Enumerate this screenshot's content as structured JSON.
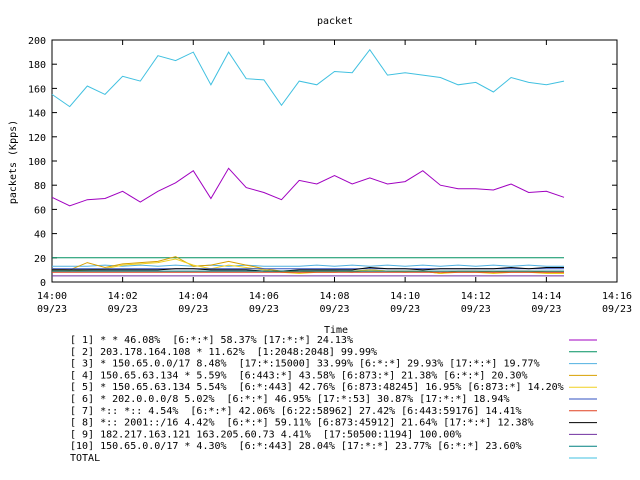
{
  "chart_data": {
    "type": "line",
    "title": "packet",
    "xlabel": "Time",
    "ylabel": "packets (Kpps)",
    "ylim": [
      0,
      200
    ],
    "yticks": [
      0,
      20,
      40,
      60,
      80,
      100,
      120,
      140,
      160,
      180,
      200
    ],
    "xlim": [
      "14:00",
      "14:16"
    ],
    "xticks": [
      {
        "time": "14:00",
        "date": "09/23"
      },
      {
        "time": "14:02",
        "date": "09/23"
      },
      {
        "time": "14:04",
        "date": "09/23"
      },
      {
        "time": "14:06",
        "date": "09/23"
      },
      {
        "time": "14:08",
        "date": "09/23"
      },
      {
        "time": "14:10",
        "date": "09/23"
      },
      {
        "time": "14:12",
        "date": "09/23"
      },
      {
        "time": "14:14",
        "date": "09/23"
      },
      {
        "time": "14:16",
        "date": "09/23"
      }
    ],
    "grid": false,
    "legend_position": "bottom",
    "x": [
      "14:00:00",
      "14:00:30",
      "14:01:00",
      "14:01:30",
      "14:02:00",
      "14:02:30",
      "14:03:00",
      "14:03:30",
      "14:04:00",
      "14:04:30",
      "14:05:00",
      "14:05:30",
      "14:06:00",
      "14:06:30",
      "14:07:00",
      "14:07:30",
      "14:08:00",
      "14:08:30",
      "14:09:00",
      "14:09:30",
      "14:10:00",
      "14:10:30",
      "14:11:00",
      "14:11:30",
      "14:12:00",
      "14:12:30",
      "14:13:00",
      "14:13:30",
      "14:14:00",
      "14:14:30"
    ],
    "series": [
      {
        "name": "[ 1] * * 46.08%  [6:*:*] 58.37% [17:*:*] 24.13%",
        "color": "#a000c0",
        "values": [
          70,
          63,
          68,
          69,
          75,
          66,
          75,
          82,
          92,
          69,
          94,
          78,
          74,
          68,
          84,
          81,
          88,
          81,
          86,
          81,
          83,
          92,
          80,
          77,
          77,
          76,
          81,
          74,
          75,
          70
        ]
      },
      {
        "name": "[ 2] 203.178.164.108 * 11.62%  [1:2048:2048] 99.99%",
        "color": "#009060",
        "values": [
          20,
          20,
          20,
          20,
          20,
          20,
          20,
          20,
          20,
          20,
          20,
          20,
          20,
          20,
          20,
          20,
          20,
          20,
          20,
          20,
          20,
          20,
          20,
          20,
          20,
          20,
          20,
          20,
          20,
          20
        ]
      },
      {
        "name": "[ 3] * 150.65.0.0/17 8.48%  [17:*:15000] 33.99% [6:*:*] 29.93% [17:*:*] 19.77%",
        "color": "#50b0e0",
        "values": [
          13,
          13,
          13,
          14,
          13,
          14,
          13,
          14,
          13,
          14,
          13,
          14,
          13,
          13,
          13,
          14,
          13,
          14,
          13,
          14,
          13,
          14,
          13,
          14,
          13,
          14,
          13,
          14,
          13,
          13
        ]
      },
      {
        "name": "[ 4] 150.65.63.134 * 5.59%  [6:443:*] 43.58% [6:873:*] 21.38% [6:*:*] 20.30%",
        "color": "#d8a000",
        "values": [
          11,
          10,
          16,
          12,
          15,
          16,
          17,
          21,
          13,
          14,
          17,
          14,
          11,
          9,
          8,
          9,
          9,
          8,
          10,
          9,
          9,
          9,
          7,
          9,
          9,
          8,
          9,
          9,
          8,
          8
        ]
      },
      {
        "name": "[ 5] * 150.65.63.134 5.54%  [6:*:443] 42.76% [6:873:48245] 16.95% [6:873:*] 14.20%",
        "color": "#f0d020",
        "values": [
          9,
          9,
          10,
          11,
          14,
          15,
          16,
          19,
          14,
          11,
          14,
          12,
          10,
          8,
          7,
          8,
          8,
          9,
          10,
          9,
          8,
          9,
          7,
          8,
          8,
          7,
          8,
          8,
          7,
          7
        ]
      },
      {
        "name": "[ 6] * 202.0.0.0/8 5.02%  [6:*:*] 46.95% [17:*:53] 30.87% [17:*:*] 18.94%",
        "color": "#3050c0",
        "values": [
          11,
          11,
          11,
          11,
          11,
          11,
          11,
          11,
          11,
          11,
          11,
          11,
          11,
          11,
          11,
          11,
          11,
          11,
          11,
          11,
          11,
          11,
          11,
          11,
          11,
          11,
          11,
          11,
          11,
          11
        ]
      },
      {
        "name": "[ 7] *:: *:: 4.54%  [6:*:*] 42.06% [6:22:58962] 27.42% [6:443:59176] 14.41%",
        "color": "#e04020",
        "values": [
          8,
          8,
          8,
          8,
          8,
          8,
          8,
          8,
          8,
          8,
          8,
          8,
          8,
          8,
          8,
          8,
          8,
          8,
          8,
          8,
          8,
          8,
          8,
          8,
          8,
          8,
          8,
          8,
          8,
          8
        ]
      },
      {
        "name": "[ 8] *:: 2001::/16 4.42%  [6:*:*] 59.11% [6:873:45912] 21.64% [17:*:*] 12.38%",
        "color": "#000000",
        "values": [
          10,
          10,
          10,
          10,
          10,
          10,
          10,
          11,
          11,
          10,
          10,
          10,
          9,
          9,
          10,
          10,
          10,
          10,
          12,
          11,
          11,
          10,
          11,
          11,
          11,
          11,
          12,
          11,
          12,
          12
        ]
      },
      {
        "name": "[ 9] 182.217.163.121 163.205.60.73 4.41%  [17:50500:1194] 100.00%",
        "color": "#7030a0",
        "values": [
          5,
          5,
          5,
          5,
          5,
          5,
          5,
          5,
          5,
          5,
          5,
          5,
          5,
          5,
          5,
          5,
          5,
          5,
          5,
          5,
          5,
          5,
          5,
          5,
          5,
          5,
          5,
          5,
          5,
          5
        ]
      },
      {
        "name": "[10] 150.65.0.0/17 * 4.30%  [6:*:443] 28.04% [17:*:*] 23.77% [6:*:*] 23.60%",
        "color": "#008080",
        "values": [
          9,
          9,
          9,
          9,
          9,
          9,
          9,
          9,
          9,
          9,
          9,
          9,
          9,
          9,
          9,
          9,
          9,
          9,
          9,
          9,
          9,
          9,
          9,
          9,
          9,
          9,
          9,
          9,
          9,
          9
        ]
      },
      {
        "name": "TOTAL",
        "color": "#40c0e0",
        "values": [
          155,
          145,
          162,
          155,
          170,
          166,
          187,
          183,
          190,
          163,
          190,
          168,
          167,
          146,
          166,
          163,
          174,
          173,
          192,
          171,
          173,
          171,
          169,
          163,
          165,
          157,
          169,
          165,
          163,
          166
        ]
      }
    ]
  }
}
